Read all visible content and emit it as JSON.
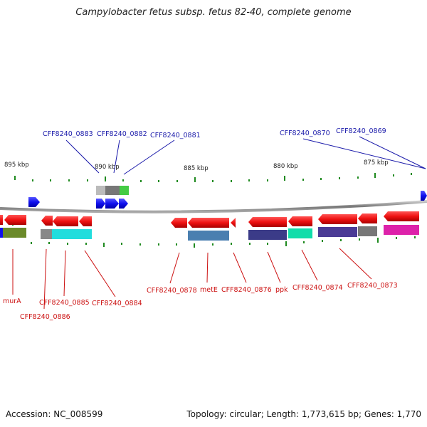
{
  "title": "Campylobacter fetus subsp. fetus 82-40, complete genome",
  "footer": {
    "accession": "Accession: NC_008599",
    "summary": "Topology: circular; Length: 1,773,615 bp; Genes: 1,770"
  },
  "scale_labels": [
    "895 kbp",
    "890 kbp",
    "885 kbp",
    "880 kbp",
    "875 kbp"
  ],
  "top_labels": [
    "CFF8240_0883",
    "CFF8240_0882",
    "CFF8240_0881",
    "CFF8240_0870",
    "CFF8240_0869"
  ],
  "bottom_labels": [
    "murA",
    "CFF8240_0886",
    "CFF8240_0885",
    "CFF8240_0884",
    "CFF8240_0878",
    "metE",
    "CFF8240_0876",
    "ppk",
    "CFF8240_0874",
    "CFF8240_0873"
  ],
  "colors": {
    "forward_gene": "#1010ee",
    "reverse_gene": "#ee1010",
    "label_top": "#1a1aaa",
    "label_bottom": "#cc1111",
    "tick": "#1f8a1f",
    "backbone": "#888888"
  }
}
